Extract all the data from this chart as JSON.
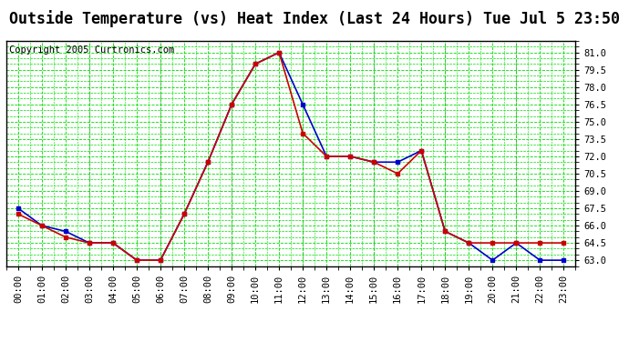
{
  "title": "Outside Temperature (vs) Heat Index (Last 24 Hours) Tue Jul 5 23:50",
  "copyright": "Copyright 2005 Curtronics.com",
  "x_labels": [
    "00:00",
    "01:00",
    "02:00",
    "03:00",
    "04:00",
    "05:00",
    "06:00",
    "07:00",
    "08:00",
    "09:00",
    "10:00",
    "11:00",
    "12:00",
    "13:00",
    "14:00",
    "15:00",
    "16:00",
    "17:00",
    "18:00",
    "19:00",
    "20:00",
    "21:00",
    "22:00",
    "23:00"
  ],
  "blue_data": [
    67.5,
    66.0,
    65.5,
    64.5,
    64.5,
    63.0,
    63.0,
    67.0,
    71.5,
    76.5,
    80.0,
    81.0,
    76.5,
    72.0,
    72.0,
    71.5,
    71.5,
    72.5,
    65.5,
    64.5,
    63.0,
    64.5,
    63.0,
    63.0
  ],
  "red_data": [
    67.0,
    66.0,
    65.0,
    64.5,
    64.5,
    63.0,
    63.0,
    67.0,
    71.5,
    76.5,
    80.0,
    81.0,
    74.0,
    72.0,
    72.0,
    71.5,
    70.5,
    72.5,
    65.5,
    64.5,
    64.5,
    64.5,
    64.5,
    64.5
  ],
  "blue_color": "#0000cc",
  "red_color": "#cc0000",
  "bg_color": "#ffffff",
  "plot_bg_color": "#ffffff",
  "grid_major_color": "#00dd00",
  "grid_minor_color": "#00dd00",
  "grid_vline_color": "#aaaaaa",
  "ylim": [
    62.5,
    82.0
  ],
  "yticks": [
    63.0,
    64.5,
    66.0,
    67.5,
    69.0,
    70.5,
    72.0,
    73.5,
    75.0,
    76.5,
    78.0,
    79.5,
    81.0
  ],
  "title_fontsize": 12,
  "copyright_fontsize": 7.5,
  "tick_fontsize": 7.5,
  "marker": "s",
  "marker_size": 3.5,
  "linewidth": 1.2
}
